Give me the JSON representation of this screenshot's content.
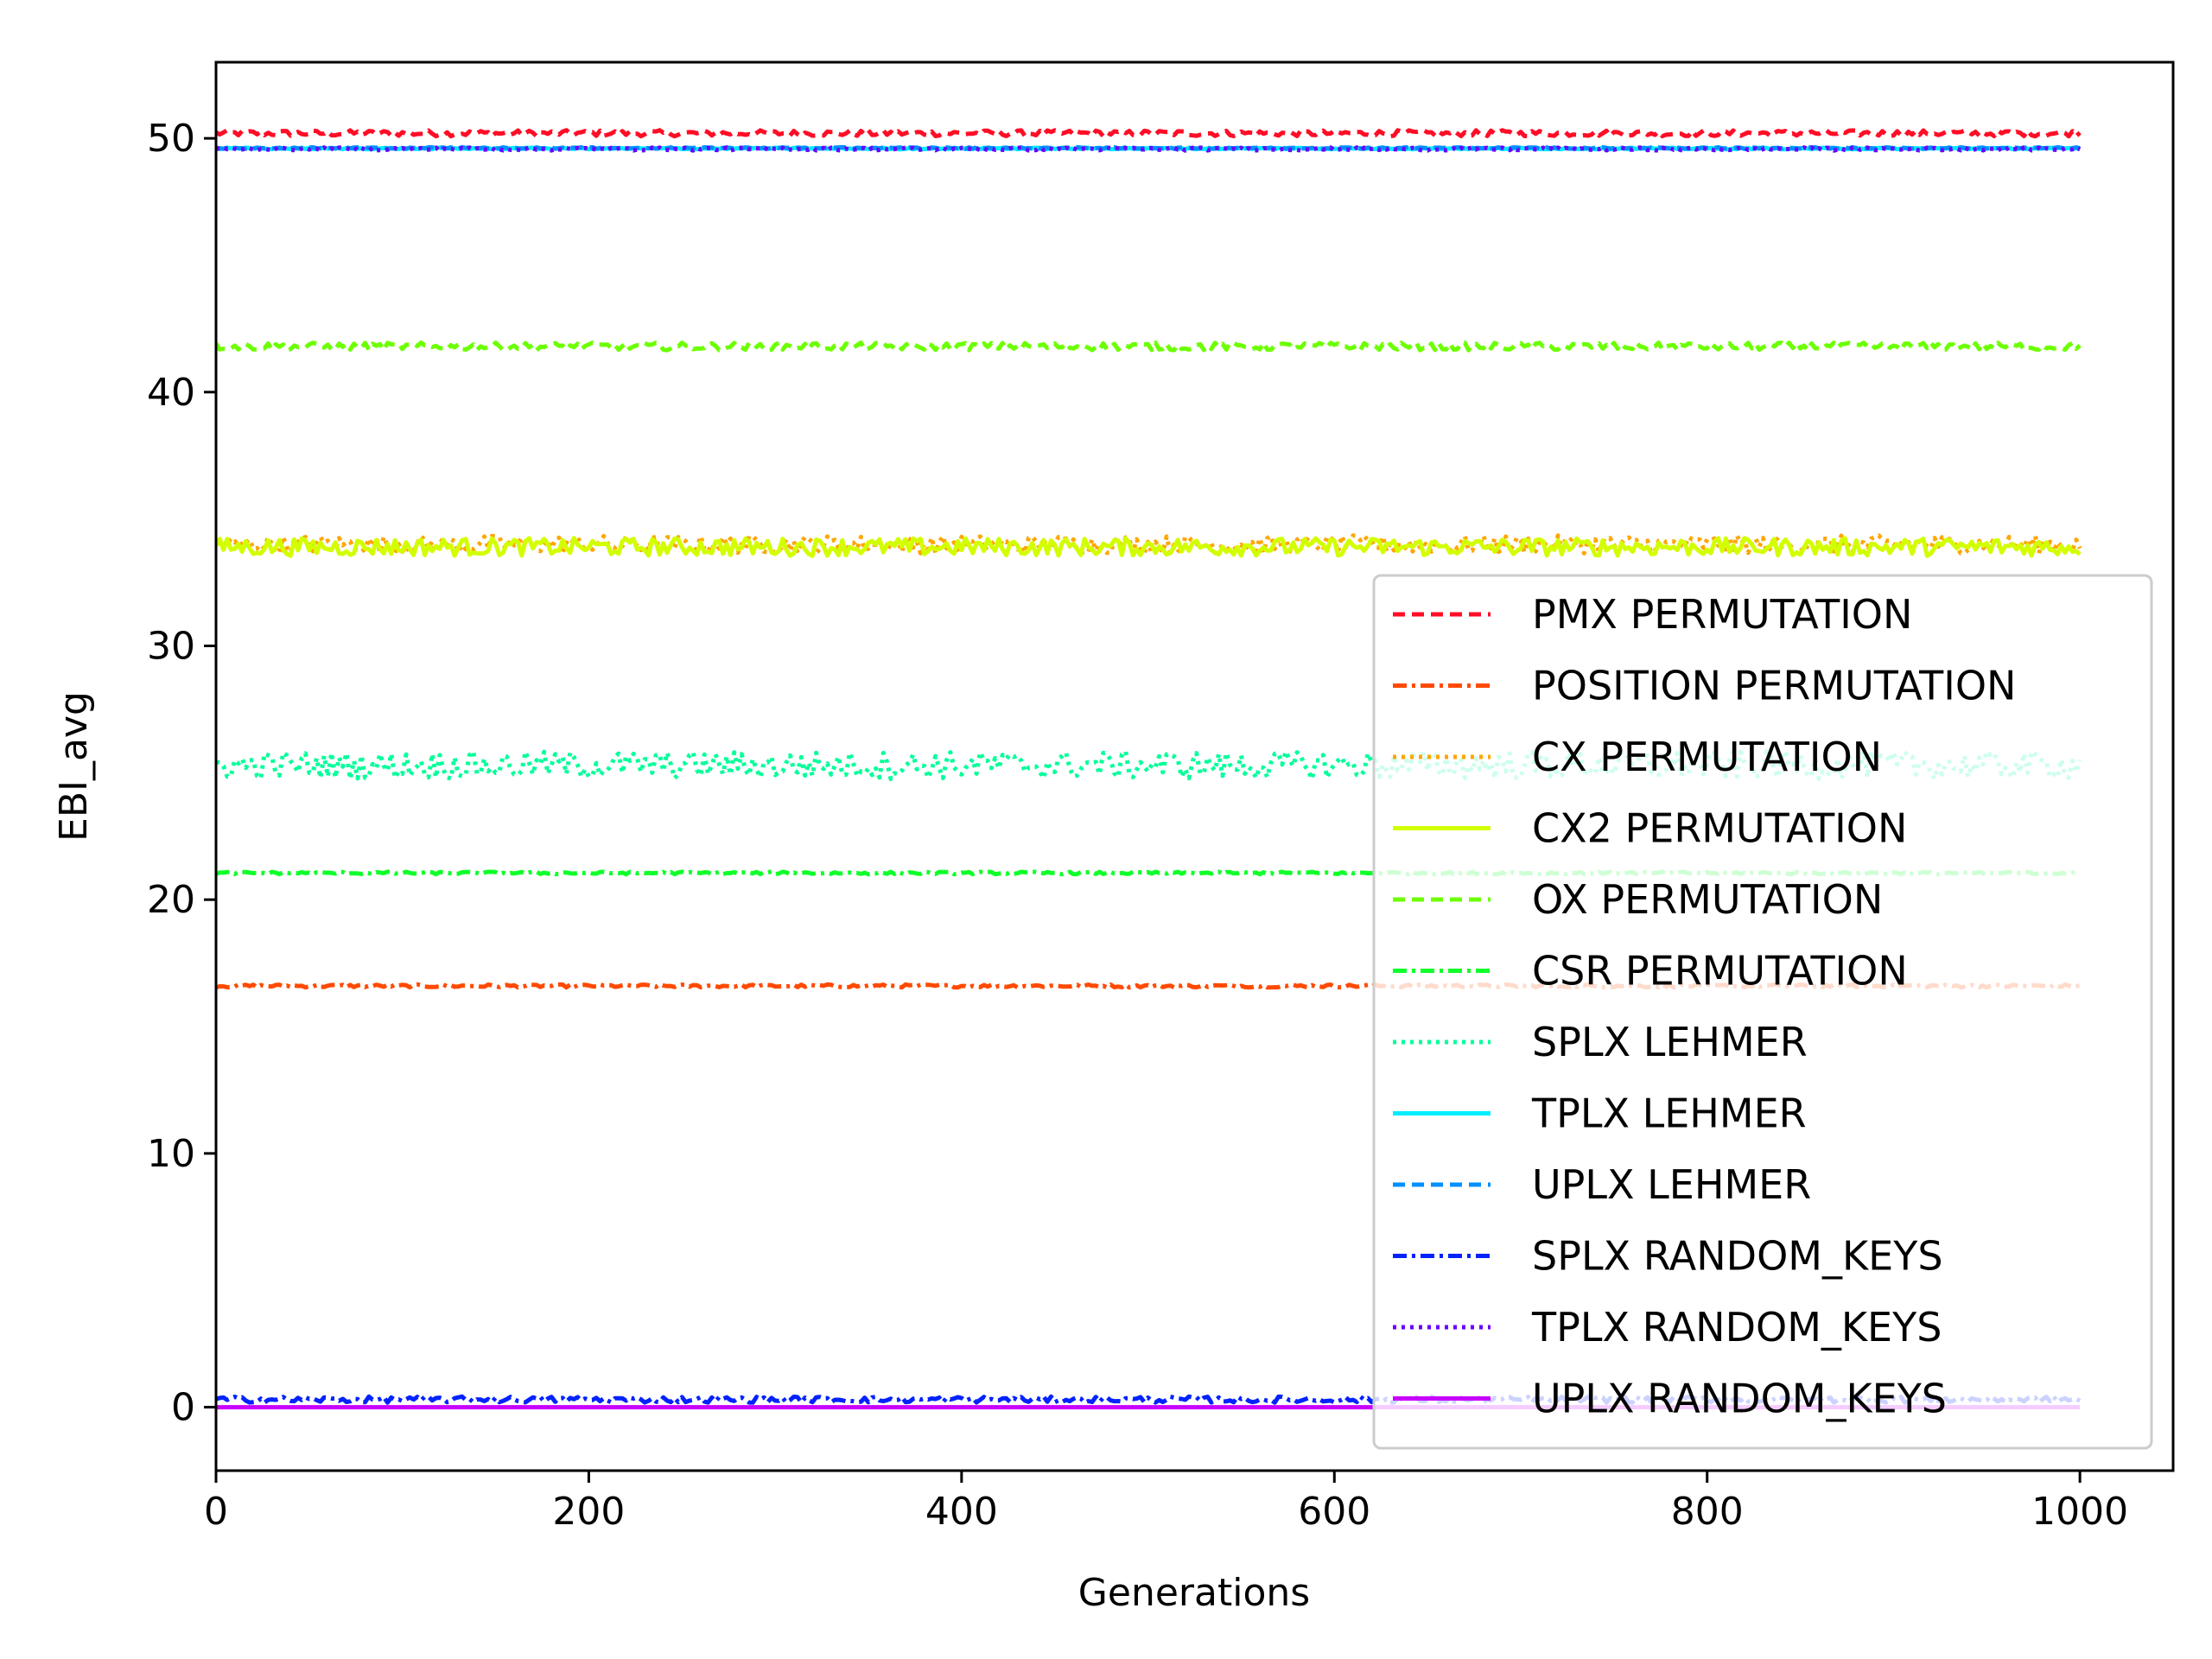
{
  "chart_data": {
    "type": "line",
    "title": "",
    "xlabel": "Generations",
    "ylabel": "EBI_avg",
    "xlim": [
      0,
      1050
    ],
    "ylim": [
      -2.5,
      53.0
    ],
    "xticks": [
      0,
      200,
      400,
      600,
      800,
      1000
    ],
    "yticks": [
      0,
      10,
      20,
      30,
      40,
      50
    ],
    "x_range": [
      0,
      1000
    ],
    "grid": false,
    "legend_position": "lower-right",
    "series": [
      {
        "name": "PMX PERMUTATION",
        "color": "#ff0d26",
        "style": "dashed",
        "mean": 50.2,
        "noise": 0.12
      },
      {
        "name": "POSITION PERMUTATION",
        "color": "#ff4a00",
        "style": "dashdot",
        "mean": 16.6,
        "noise": 0.06
      },
      {
        "name": "CX PERMUTATION",
        "color": "#ffa500",
        "style": "dotted",
        "mean": 34.0,
        "noise": 0.35
      },
      {
        "name": "CX2 PERMUTATION",
        "color": "#d2ff00",
        "style": "solid",
        "mean": 33.9,
        "noise": 0.35
      },
      {
        "name": "OX PERMUTATION",
        "color": "#6cff00",
        "style": "dashed",
        "mean": 41.8,
        "noise": 0.15
      },
      {
        "name": "CSR PERMUTATION",
        "color": "#10ff2a",
        "style": "dashdot",
        "mean": 21.05,
        "noise": 0.05
      },
      {
        "name": "SPLX LEHMER",
        "color": "#00ff9a",
        "style": "dotted",
        "mean": 25.3,
        "noise": 0.55
      },
      {
        "name": "TPLX LEHMER",
        "color": "#00eeff",
        "style": "solid",
        "mean": 49.6,
        "noise": 0.03
      },
      {
        "name": "UPLX LEHMER",
        "color": "#0090ff",
        "style": "dashed",
        "mean": 49.62,
        "noise": 0.03
      },
      {
        "name": "SPLX RANDOM_KEYS",
        "color": "#0022ff",
        "style": "dashdot",
        "mean": 0.3,
        "noise": 0.12
      },
      {
        "name": "TPLX RANDOM_KEYS",
        "color": "#6a00ff",
        "style": "dotted",
        "mean": 49.58,
        "noise": 0.06
      },
      {
        "name": "UPLX RANDOM_KEYS",
        "color": "#c800ff",
        "style": "solid",
        "mean": 0.0,
        "noise": 0.0
      }
    ]
  }
}
